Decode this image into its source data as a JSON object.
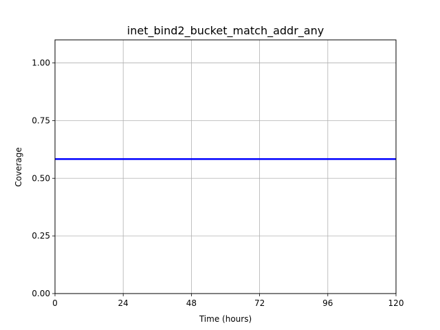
{
  "chart_data": {
    "type": "line",
    "title": "inet_bind2_bucket_match_addr_any",
    "xlabel": "Time (hours)",
    "ylabel": "Coverage",
    "xlim": [
      0,
      120
    ],
    "ylim": [
      0,
      1.1
    ],
    "xticks": [
      0,
      24,
      48,
      72,
      96,
      120
    ],
    "yticks": [
      0.0,
      0.25,
      0.5,
      0.75,
      1.0
    ],
    "xtick_labels": [
      "0",
      "24",
      "48",
      "72",
      "96",
      "120"
    ],
    "ytick_labels": [
      "0.00",
      "0.25",
      "0.50",
      "0.75",
      "1.00"
    ],
    "grid": true,
    "series": [
      {
        "color": "#0000ff",
        "x": [
          0,
          120
        ],
        "y": [
          0.583,
          0.583
        ]
      }
    ]
  }
}
